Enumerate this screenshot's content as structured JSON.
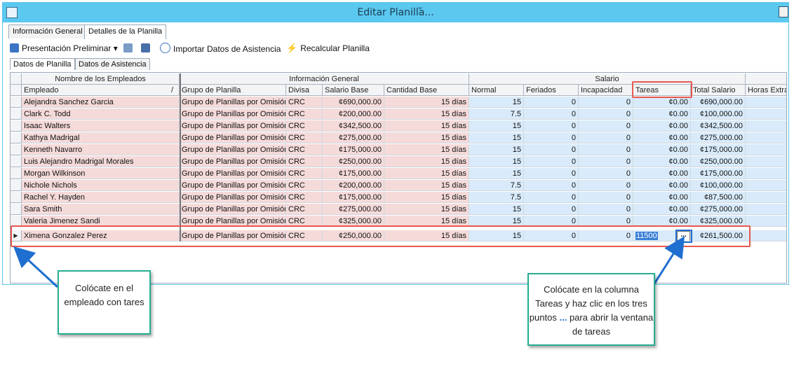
{
  "window": {
    "title": "Editar Planilla..."
  },
  "tabs": [
    "Información General",
    "Detalles de la Planilla"
  ],
  "toolbar": {
    "preview": "Presentación Preliminar",
    "import": "Importar Datos de Asistencia",
    "recalc": "Recalcular Planilla"
  },
  "subtabs": [
    "Datos de Planilla",
    "Datos de Asistencia"
  ],
  "groups": {
    "names": "Nombre de los Empleados",
    "info": "Información General",
    "salary": "Salario"
  },
  "columns": [
    "Empleado",
    "Grupo de Planilla",
    "Divisa",
    "Salario Base",
    "Cantidad Base",
    "Normal",
    "Feriados",
    "Incapacidad",
    "Tareas",
    "Total Salario",
    "Horas Extra"
  ],
  "sort_indicator": "/",
  "rows": [
    [
      "Alejandra Sanchez Garcia",
      "Grupo de Planillas por Omisión",
      "CRC",
      "¢690,000.00",
      "15 días",
      "15",
      "0",
      "0",
      "¢0.00",
      "¢690,000.00"
    ],
    [
      "Clark C. Todd",
      "Grupo de Planillas por Omisión",
      "CRC",
      "¢200,000.00",
      "15 días",
      "7.5",
      "0",
      "0",
      "¢0.00",
      "¢100,000.00"
    ],
    [
      "Isaac Walters",
      "Grupo de Planillas por Omisión",
      "CRC",
      "¢342,500.00",
      "15 días",
      "15",
      "0",
      "0",
      "¢0.00",
      "¢342,500.00"
    ],
    [
      "Kathya Madrigal",
      "Grupo de Planillas por Omisión",
      "CRC",
      "¢275,000.00",
      "15 días",
      "15",
      "0",
      "0",
      "¢0.00",
      "¢275,000.00"
    ],
    [
      "Kenneth Navarro",
      "Grupo de Planillas por Omisión",
      "CRC",
      "¢175,000.00",
      "15 días",
      "15",
      "0",
      "0",
      "¢0.00",
      "¢175,000.00"
    ],
    [
      "Luis Alejandro Madrigal Morales",
      "Grupo de Planillas por Omisión",
      "CRC",
      "¢250,000.00",
      "15 días",
      "15",
      "0",
      "0",
      "¢0.00",
      "¢250,000.00"
    ],
    [
      "Morgan Wilkinson",
      "Grupo de Planillas por Omisión",
      "CRC",
      "¢175,000.00",
      "15 días",
      "15",
      "0",
      "0",
      "¢0.00",
      "¢175,000.00"
    ],
    [
      "Nichole Nichols",
      "Grupo de Planillas por Omisión",
      "CRC",
      "¢200,000.00",
      "15 días",
      "7.5",
      "0",
      "0",
      "¢0.00",
      "¢100,000.00"
    ],
    [
      "Rachel Y. Hayden",
      "Grupo de Planillas por Omisión",
      "CRC",
      "¢175,000.00",
      "15 días",
      "7.5",
      "0",
      "0",
      "¢0.00",
      "¢87,500.00"
    ],
    [
      "Sara Smith",
      "Grupo de Planillas por Omisión",
      "CRC",
      "¢275,000.00",
      "15 días",
      "15",
      "0",
      "0",
      "¢0.00",
      "¢275,000.00"
    ],
    [
      "Valeria Jimenez Sandi",
      "Grupo de Planillas por Omisión",
      "CRC",
      "¢325,000.00",
      "15 días",
      "15",
      "0",
      "0",
      "¢0.00",
      "¢325,000.00"
    ]
  ],
  "selected_row": [
    "Ximena Gonzalez Perez",
    "Grupo de Planillas por Omisión",
    "CRC",
    "¢250,000.00",
    "15 días",
    "15",
    "0",
    "0",
    "11500",
    "¢261,500.00"
  ],
  "ellipsis_label": "...",
  "callouts": {
    "left": "Colócate en el empleado con tares",
    "right_pre": "Colócate en la columna Tareas y  haz clic en los tres puntos",
    "right_dots": "...",
    "right_post": "para abrir la ventana de tareas"
  },
  "colors": {
    "titlebar": "#5ac8ef",
    "pink": "#f5dada",
    "blue": "#d9ebfa",
    "highlight": "#e8574e",
    "callout_border": "#27ad93"
  }
}
